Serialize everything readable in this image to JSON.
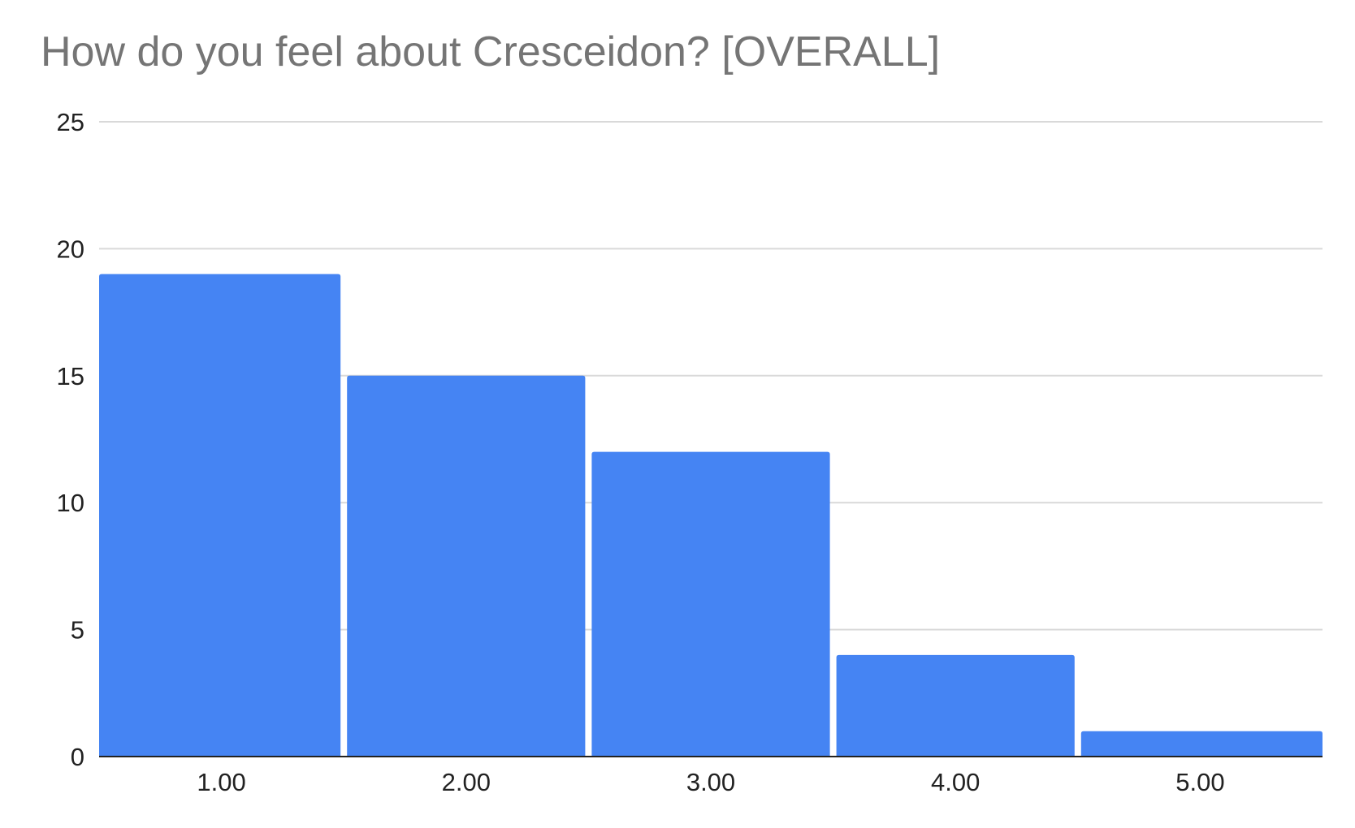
{
  "chart_data": {
    "type": "bar",
    "title": "How do you feel about Cresceidon? [OVERALL]",
    "xlabel": "",
    "ylabel": "",
    "categories": [
      "1.00",
      "2.00",
      "3.00",
      "4.00",
      "5.00"
    ],
    "values": [
      19,
      15,
      12,
      4,
      1
    ],
    "ylim": [
      0,
      25
    ],
    "yticks": [
      0,
      5,
      10,
      15,
      20,
      25
    ],
    "grid": true,
    "legend": "none",
    "bar_color": "#4584f3",
    "gridline_color": "#d9d9d9",
    "title_color": "#757575"
  }
}
